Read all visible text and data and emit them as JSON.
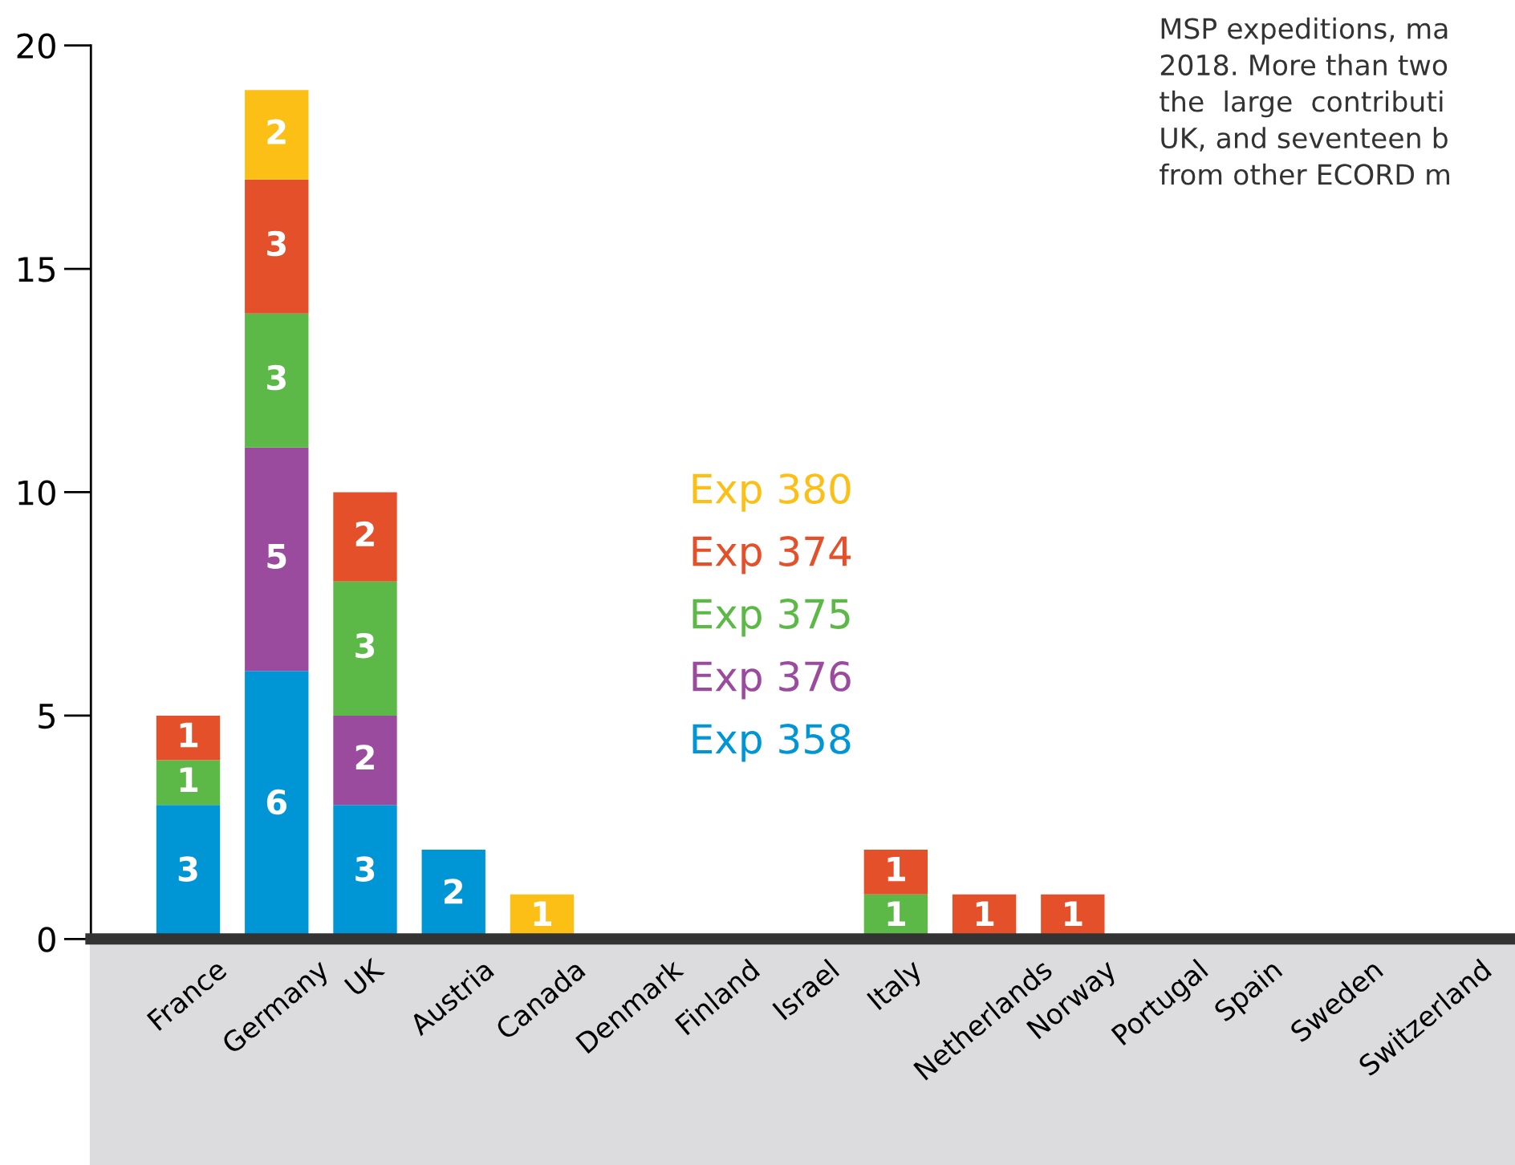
{
  "chart_data": {
    "type": "bar",
    "stacked": true,
    "data_labels": true,
    "legend": "center",
    "grid": false,
    "categories": [
      "France",
      "Germany",
      "UK",
      "Austria",
      "Canada",
      "Denmark",
      "Finland",
      "Israel",
      "Italy",
      "Netherlands",
      "Norway",
      "Portugal",
      "Spain",
      "Sweden",
      "Switzerland"
    ],
    "ylim": [
      0,
      20
    ],
    "yticks": [
      0,
      5,
      10,
      15,
      20
    ],
    "series": [
      {
        "name": "Exp 358",
        "color": "#0096d6",
        "values": [
          3,
          6,
          3,
          2,
          null,
          null,
          null,
          null,
          null,
          null,
          null,
          null,
          null,
          null,
          null
        ]
      },
      {
        "name": "Exp 376",
        "color": "#9b4b9e",
        "values": [
          null,
          5,
          2,
          null,
          null,
          null,
          null,
          null,
          null,
          null,
          null,
          null,
          null,
          null,
          null
        ]
      },
      {
        "name": "Exp 375",
        "color": "#5cb947",
        "values": [
          1,
          3,
          3,
          null,
          null,
          null,
          null,
          null,
          1,
          null,
          null,
          null,
          null,
          null,
          null
        ]
      },
      {
        "name": "Exp 374",
        "color": "#e4502a",
        "values": [
          1,
          3,
          2,
          null,
          null,
          null,
          null,
          null,
          1,
          1,
          1,
          null,
          null,
          null,
          null
        ]
      },
      {
        "name": "Exp 380",
        "color": "#fbbf16",
        "values": [
          null,
          2,
          null,
          null,
          1,
          null,
          null,
          null,
          null,
          null,
          null,
          null,
          null,
          null,
          null
        ]
      }
    ],
    "annotations": [
      "MSP expeditions, ma\n2018. More than two\nthe  large  contributi\nUK, and seventeen b\nfrom other ECORD m"
    ]
  }
}
